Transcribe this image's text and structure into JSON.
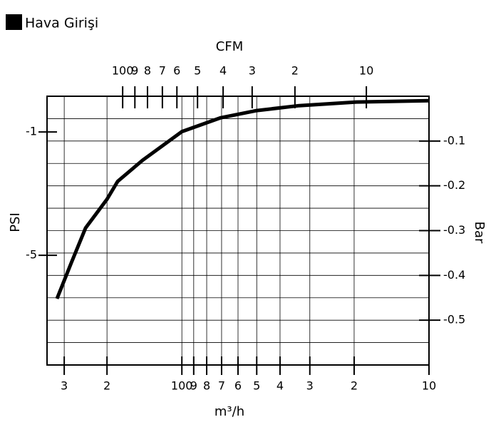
{
  "chart_data": {
    "type": "line",
    "xlabel": "m³/h",
    "x2label": "CFM",
    "ylabel": "PSI",
    "y2label": "Bar",
    "xlim": [
      0,
      100
    ],
    "xticks": [
      {
        "value": 4.5,
        "label": "3"
      },
      {
        "value": 15.7,
        "label": "2"
      },
      {
        "value": 35.3,
        "label": "100"
      },
      {
        "value": 38.4,
        "label": "9"
      },
      {
        "value": 41.8,
        "label": "8"
      },
      {
        "value": 45.7,
        "label": "7"
      },
      {
        "value": 50,
        "label": "6"
      },
      {
        "value": 54.9,
        "label": "5"
      },
      {
        "value": 61,
        "label": "4"
      },
      {
        "value": 68.8,
        "label": "3"
      },
      {
        "value": 80.4,
        "label": "2"
      },
      {
        "value": 100,
        "label": "10"
      }
    ],
    "x2ticks": [
      {
        "value": 19.8,
        "label": "100"
      },
      {
        "value": 23,
        "label": "9"
      },
      {
        "value": 26.3,
        "label": "8"
      },
      {
        "value": 30.2,
        "label": "7"
      },
      {
        "value": 34,
        "label": "6"
      },
      {
        "value": 39.4,
        "label": "5"
      },
      {
        "value": 46.1,
        "label": "4"
      },
      {
        "value": 53.7,
        "label": "3"
      },
      {
        "value": 64.9,
        "label": "2"
      },
      {
        "value": 83.6,
        "label": "10"
      }
    ],
    "ylim": [
      -8.56,
      0.16
    ],
    "yticks": [
      -1,
      -5
    ],
    "y2lim": [
      -0.6,
      0
    ],
    "y2ticks": [
      -0.1,
      -0.2,
      -0.3,
      -0.4,
      -0.5
    ],
    "grid": true,
    "x": [
      2.6,
      6.3,
      10.1,
      15.7,
      18.5,
      25,
      35.3,
      45.5,
      54.9,
      66,
      81,
      100
    ],
    "series": [
      {
        "name": "Hava Girişi",
        "color": "#000000",
        "axis": "y2",
        "values": [
          -0.452,
          -0.373,
          -0.294,
          -0.23,
          -0.19,
          -0.143,
          -0.079,
          -0.048,
          -0.032,
          -0.021,
          -0.013,
          -0.01
        ]
      }
    ]
  }
}
